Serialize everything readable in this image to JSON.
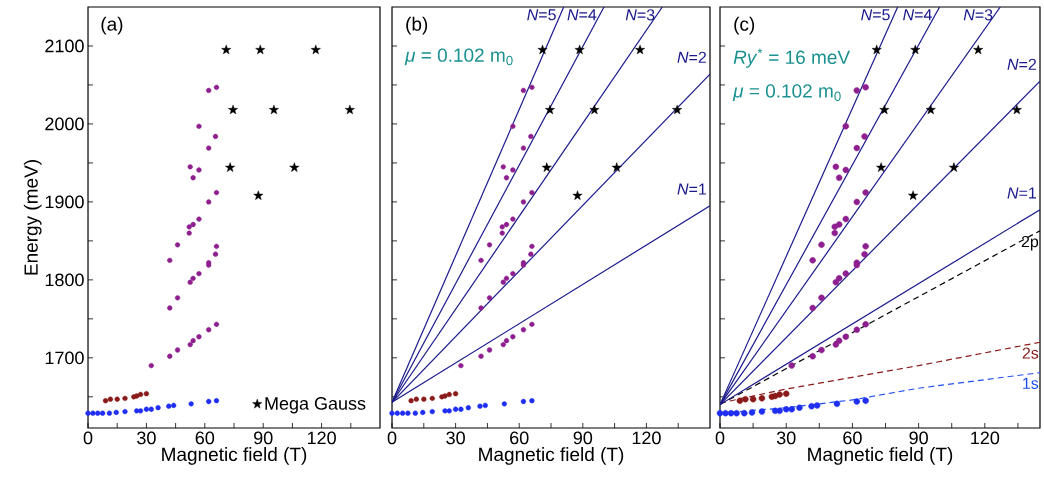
{
  "chart_data": [
    {
      "type": "scatter",
      "xlabel": "Magnetic field (T)",
      "ylabel": "Energy (meV)",
      "xlim": [
        0,
        150
      ],
      "ylim": [
        1610,
        2150
      ],
      "xticks": [
        0,
        {
          "value": 15,
          "label": null
        },
        30,
        {
          "value": 45,
          "label": null
        },
        60,
        {
          "value": 75,
          "label": null
        },
        90,
        {
          "value": 105,
          "label": null
        },
        120,
        {
          "value": 135,
          "label": null
        }
      ],
      "yticks": [
        {
          "value": 1650,
          "label": null
        },
        1700,
        {
          "value": 1750,
          "label": null
        },
        1800,
        {
          "value": 1850,
          "label": null
        },
        1900,
        {
          "value": 1950,
          "label": null
        },
        2000,
        {
          "value": 2050,
          "label": null
        },
        2100
      ],
      "legend": "bottom right",
      "annotations": [
        "(a)"
      ],
      "series": [
        {
          "marker": "circle",
          "color": "#1f2ef0",
          "x": [
            0,
            2.5,
            5,
            7.5,
            11,
            14.5,
            19,
            25,
            27,
            30,
            32.5,
            36,
            41.5,
            44,
            53,
            62,
            66
          ],
          "values": [
            1629,
            1629,
            1629,
            1629,
            1629,
            1630,
            1631,
            1632,
            1632,
            1634,
            1634,
            1636,
            1638,
            1639,
            1641,
            1644,
            1645
          ]
        },
        {
          "marker": "circle",
          "color": "#8b1a1a",
          "x": [
            9,
            11.5,
            15,
            19,
            23.5,
            25,
            27,
            30
          ],
          "values": [
            1645,
            1647,
            1647,
            1648,
            1650,
            1651,
            1653,
            1654
          ]
        },
        {
          "marker": "circle",
          "color": "#8e1f8e",
          "x": [
            62,
            66,
            57,
            65.5,
            62,
            52.5,
            57,
            54,
            66,
            62,
            57,
            52,
            54,
            52,
            46,
            42,
            66,
            65.5,
            62,
            62,
            57,
            54,
            52.5,
            46,
            42,
            66,
            62,
            57,
            54,
            52.5,
            46,
            42,
            32.5
          ],
          "values": [
            2043,
            2047,
            1997,
            1984,
            1969,
            1945,
            1941,
            1931,
            1912,
            1900,
            1878,
            1868,
            1871,
            1860,
            1845,
            1825,
            1843,
            1833,
            1822,
            1819,
            1808,
            1802,
            1797,
            1777,
            1764,
            1743,
            1736,
            1727,
            1722,
            1717,
            1710,
            1702,
            1690
          ]
        },
        {
          "marker": "star",
          "color": "#000000",
          "name": "Mega Gauss",
          "x": [
            71,
            88.5,
            117,
            74.5,
            95.5,
            134.5,
            73,
            106,
            87.5
          ],
          "values": [
            2095,
            2095,
            2095,
            2018,
            2018,
            2018,
            1944,
            1944,
            1908
          ]
        }
      ]
    },
    {
      "type": "scatter",
      "xlabel": "Magnetic field (T)",
      "xlim": [
        0,
        150
      ],
      "ylim": [
        1610,
        2150
      ],
      "tick_labels": "x",
      "xticks": [
        0,
        {
          "value": 15,
          "label": null
        },
        30,
        {
          "value": 45,
          "label": null
        },
        60,
        {
          "value": 75,
          "label": null
        },
        90,
        {
          "value": 105,
          "label": null
        },
        120,
        {
          "value": 135,
          "label": null
        }
      ],
      "yticks": [
        {
          "value": 1650,
          "label": null
        },
        1700,
        {
          "value": 1750,
          "label": null
        },
        1800,
        {
          "value": 1850,
          "label": null
        },
        1900,
        {
          "value": 1950,
          "label": null
        },
        2000,
        {
          "value": 2050,
          "label": null
        },
        2100
      ],
      "annotations": [
        "(b)",
        "*μ* = 0.102 m$_{0}$"
      ],
      "series": [
        {
          "type": "line",
          "marker": "none",
          "line_style": "solid",
          "color": "#1a1a8c",
          "name": "*N*=1",
          "x": [
            0,
            150
          ],
          "values": [
            1643,
            1895
          ]
        },
        {
          "type": "line",
          "marker": "none",
          "line_style": "solid",
          "color": "#1a1a8c",
          "name": "*N*=2",
          "x": [
            0,
            150
          ],
          "values": [
            1643,
            2064
          ]
        },
        {
          "type": "line",
          "marker": "none",
          "line_style": "solid",
          "color": "#1a1a8c",
          "name": "*N*=3",
          "x": [
            0,
            127.5
          ],
          "values": [
            1643,
            2150
          ]
        },
        {
          "type": "line",
          "marker": "none",
          "line_style": "solid",
          "color": "#1a1a8c",
          "name": "*N*=4",
          "x": [
            0,
            100
          ],
          "values": [
            1643,
            2150
          ]
        },
        {
          "type": "line",
          "marker": "none",
          "line_style": "solid",
          "color": "#1a1a8c",
          "name": "*N*=5",
          "x": [
            0,
            81
          ],
          "values": [
            1643,
            2150
          ]
        },
        {
          "marker": "circle",
          "color": "#1f2ef0",
          "x": [
            0,
            2.5,
            5,
            7.5,
            11,
            14.5,
            19,
            25,
            27,
            30,
            32.5,
            36,
            41.5,
            44,
            53,
            62,
            66
          ],
          "values": [
            1629,
            1629,
            1629,
            1629,
            1629,
            1630,
            1631,
            1632,
            1632,
            1634,
            1634,
            1636,
            1638,
            1639,
            1641,
            1644,
            1645
          ]
        },
        {
          "marker": "circle",
          "color": "#8b1a1a",
          "x": [
            9,
            11.5,
            15,
            19,
            23.5,
            25,
            27,
            30
          ],
          "values": [
            1645,
            1647,
            1647,
            1648,
            1650,
            1651,
            1653,
            1654
          ]
        },
        {
          "marker": "circle",
          "color": "#8e1f8e",
          "x": [
            62,
            66,
            57,
            65.5,
            62,
            52.5,
            57,
            54,
            66,
            62,
            57,
            52,
            54,
            52,
            46,
            42,
            66,
            65.5,
            62,
            62,
            57,
            54,
            52.5,
            46,
            42,
            66,
            62,
            57,
            54,
            52.5,
            46,
            42,
            32.5
          ],
          "values": [
            2043,
            2047,
            1997,
            1984,
            1969,
            1945,
            1941,
            1931,
            1912,
            1900,
            1878,
            1868,
            1871,
            1860,
            1845,
            1825,
            1843,
            1833,
            1822,
            1819,
            1808,
            1802,
            1797,
            1777,
            1764,
            1743,
            1736,
            1727,
            1722,
            1717,
            1710,
            1702,
            1690
          ]
        },
        {
          "marker": "star",
          "color": "#000000",
          "x": [
            71,
            88.5,
            117,
            74.5,
            95.5,
            134.5,
            73,
            106,
            87.5
          ],
          "values": [
            2095,
            2095,
            2095,
            2018,
            2018,
            2018,
            1944,
            1944,
            1908
          ]
        }
      ]
    },
    {
      "type": "scatter",
      "xlabel": "Magnetic field (T)",
      "xlim": [
        0,
        145
      ],
      "ylim": [
        1610,
        2150
      ],
      "tick_labels": "x",
      "xticks": [
        0,
        {
          "value": 15,
          "label": null
        },
        30,
        {
          "value": 45,
          "label": null
        },
        60,
        {
          "value": 75,
          "label": null
        },
        90,
        {
          "value": 105,
          "label": null
        },
        120,
        {
          "value": 135,
          "label": null
        }
      ],
      "yticks": [
        {
          "value": 1650,
          "label": null
        },
        1700,
        {
          "value": 1750,
          "label": null
        },
        1800,
        {
          "value": 1850,
          "label": null
        },
        1900,
        {
          "value": 1950,
          "label": null
        },
        2000,
        {
          "value": 2050,
          "label": null
        },
        2100
      ],
      "annotations": [
        "(c)",
        "*Ry*$^{*}$ = 16 meV",
        "*μ* = 0.102 m$_{0}$"
      ],
      "series": [
        {
          "type": "line",
          "marker": "none",
          "line_style": "dashed",
          "color": "#000000",
          "name": "2p",
          "x": [
            0,
            145
          ],
          "values": [
            1640,
            1863
          ]
        },
        {
          "type": "line",
          "marker": "none",
          "line_style": "dashed",
          "color": "#8b1a1a",
          "name": "2s",
          "x": [
            0,
            30,
            90,
            145
          ],
          "values": [
            1642,
            1660,
            1690,
            1720
          ]
        },
        {
          "type": "line",
          "marker": "none",
          "line_style": "dashed",
          "color": "#1f4ff0",
          "name": "1s",
          "x": [
            0,
            30,
            60,
            90,
            120,
            145
          ],
          "values": [
            1629,
            1636,
            1646,
            1661,
            1672,
            1681
          ]
        },
        {
          "type": "line",
          "marker": "none",
          "line_style": "solid",
          "color": "#1a1a8c",
          "name": "*N*=1",
          "x": [
            0,
            145
          ],
          "values": [
            1640,
            1890
          ]
        },
        {
          "type": "line",
          "marker": "none",
          "line_style": "solid",
          "color": "#1a1a8c",
          "name": "*N*=2",
          "x": [
            0,
            145
          ],
          "values": [
            1640,
            2055
          ]
        },
        {
          "type": "line",
          "marker": "none",
          "line_style": "solid",
          "color": "#1a1a8c",
          "name": "*N*=3",
          "x": [
            0,
            127
          ],
          "values": [
            1640,
            2150
          ]
        },
        {
          "type": "line",
          "marker": "none",
          "line_style": "solid",
          "color": "#1a1a8c",
          "name": "*N*=4",
          "x": [
            0,
            99.5
          ],
          "values": [
            1640,
            2150
          ]
        },
        {
          "type": "line",
          "marker": "none",
          "line_style": "solid",
          "color": "#1a1a8c",
          "name": "*N*=5",
          "x": [
            0,
            80.5
          ],
          "values": [
            1640,
            2150
          ]
        },
        {
          "marker": "circle",
          "color": "#1f2ef0",
          "x": [
            0,
            2.5,
            5,
            7.5,
            11,
            14.5,
            19,
            25,
            27,
            30,
            32.5,
            36,
            41.5,
            44,
            53,
            62,
            66
          ],
          "values": [
            1629,
            1629,
            1629,
            1629,
            1629,
            1630,
            1631,
            1632,
            1632,
            1634,
            1634,
            1636,
            1638,
            1639,
            1641,
            1644,
            1645
          ]
        },
        {
          "marker": "circle",
          "color": "#8b1a1a",
          "x": [
            9,
            11.5,
            15,
            19,
            23.5,
            25,
            27,
            30
          ],
          "values": [
            1645,
            1647,
            1647,
            1648,
            1650,
            1651,
            1653,
            1654
          ]
        },
        {
          "marker": "circle",
          "color": "#8e1f8e",
          "x": [
            62,
            66,
            57,
            65.5,
            62,
            52.5,
            57,
            54,
            66,
            62,
            57,
            52,
            54,
            52,
            46,
            42,
            66,
            65.5,
            62,
            62,
            57,
            54,
            52.5,
            46,
            42,
            66,
            62,
            57,
            54,
            52.5,
            46,
            42,
            32.5
          ],
          "values": [
            2043,
            2047,
            1997,
            1984,
            1969,
            1945,
            1941,
            1931,
            1912,
            1900,
            1878,
            1868,
            1871,
            1860,
            1845,
            1825,
            1843,
            1833,
            1822,
            1819,
            1808,
            1802,
            1797,
            1777,
            1764,
            1743,
            1736,
            1727,
            1722,
            1717,
            1710,
            1702,
            1690
          ]
        },
        {
          "marker": "star",
          "color": "#000000",
          "x": [
            71,
            88.5,
            117,
            74.5,
            95.5,
            134.5,
            73,
            106,
            87.5
          ],
          "values": [
            2095,
            2095,
            2095,
            2018,
            2018,
            2018,
            1944,
            1944,
            1908
          ]
        }
      ]
    }
  ]
}
